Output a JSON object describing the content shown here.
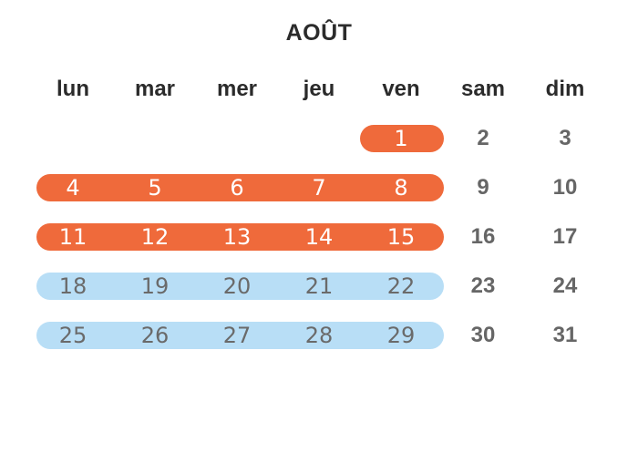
{
  "calendar": {
    "month": "AOÛT",
    "weekdays": [
      "lun",
      "mar",
      "mer",
      "jeu",
      "ven",
      "sam",
      "dim"
    ],
    "colors": {
      "highlight_orange": "#ef6a3b",
      "highlight_blue": "#b8def6",
      "text_dark": "#2b2b2b",
      "text_grey": "#666666"
    },
    "weeks": [
      {
        "highlight": "orange",
        "days": [
          "",
          "",
          "",
          "",
          "1",
          "2",
          "3"
        ]
      },
      {
        "highlight": "orange",
        "days": [
          "4",
          "5",
          "6",
          "7",
          "8",
          "9",
          "10"
        ]
      },
      {
        "highlight": "orange",
        "days": [
          "11",
          "12",
          "13",
          "14",
          "15",
          "16",
          "17"
        ]
      },
      {
        "highlight": "blue",
        "days": [
          "18",
          "19",
          "20",
          "21",
          "22",
          "23",
          "24"
        ]
      },
      {
        "highlight": "blue",
        "days": [
          "25",
          "26",
          "27",
          "28",
          "29",
          "30",
          "31"
        ]
      }
    ]
  }
}
